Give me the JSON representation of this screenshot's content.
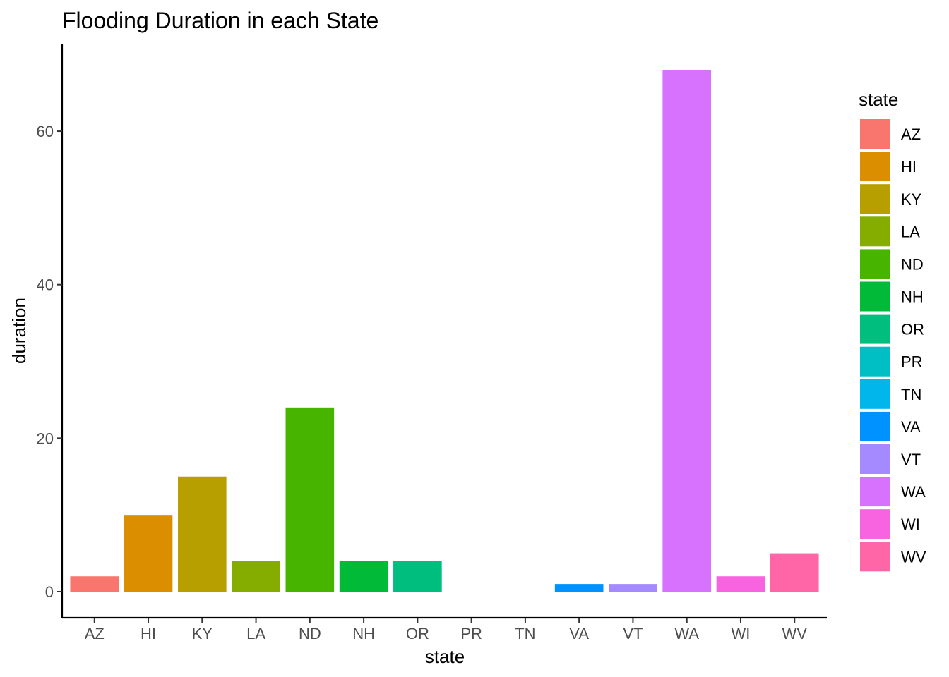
{
  "chart_data": {
    "type": "bar",
    "title": "Flooding Duration in each State",
    "xlabel": "state",
    "ylabel": "duration",
    "categories": [
      "AZ",
      "HI",
      "KY",
      "LA",
      "ND",
      "NH",
      "OR",
      "PR",
      "TN",
      "VA",
      "VT",
      "WA",
      "WI",
      "WV"
    ],
    "values": [
      2,
      10,
      15,
      4,
      24,
      4,
      4,
      0,
      0,
      1,
      1,
      68,
      2,
      5
    ],
    "colors": [
      "#F8766D",
      "#DB8E00",
      "#B79F00",
      "#85AD00",
      "#47B400",
      "#00BA38",
      "#00BE7D",
      "#00BFC4",
      "#00B6EB",
      "#0093FF",
      "#A58AFF",
      "#D772FF",
      "#F863DF",
      "#FF66A8"
    ],
    "yticks": [
      0,
      20,
      40,
      60
    ],
    "ylim": [
      -3.4,
      71.4
    ],
    "grid": false,
    "legend": {
      "title": "state",
      "position": "right"
    }
  }
}
